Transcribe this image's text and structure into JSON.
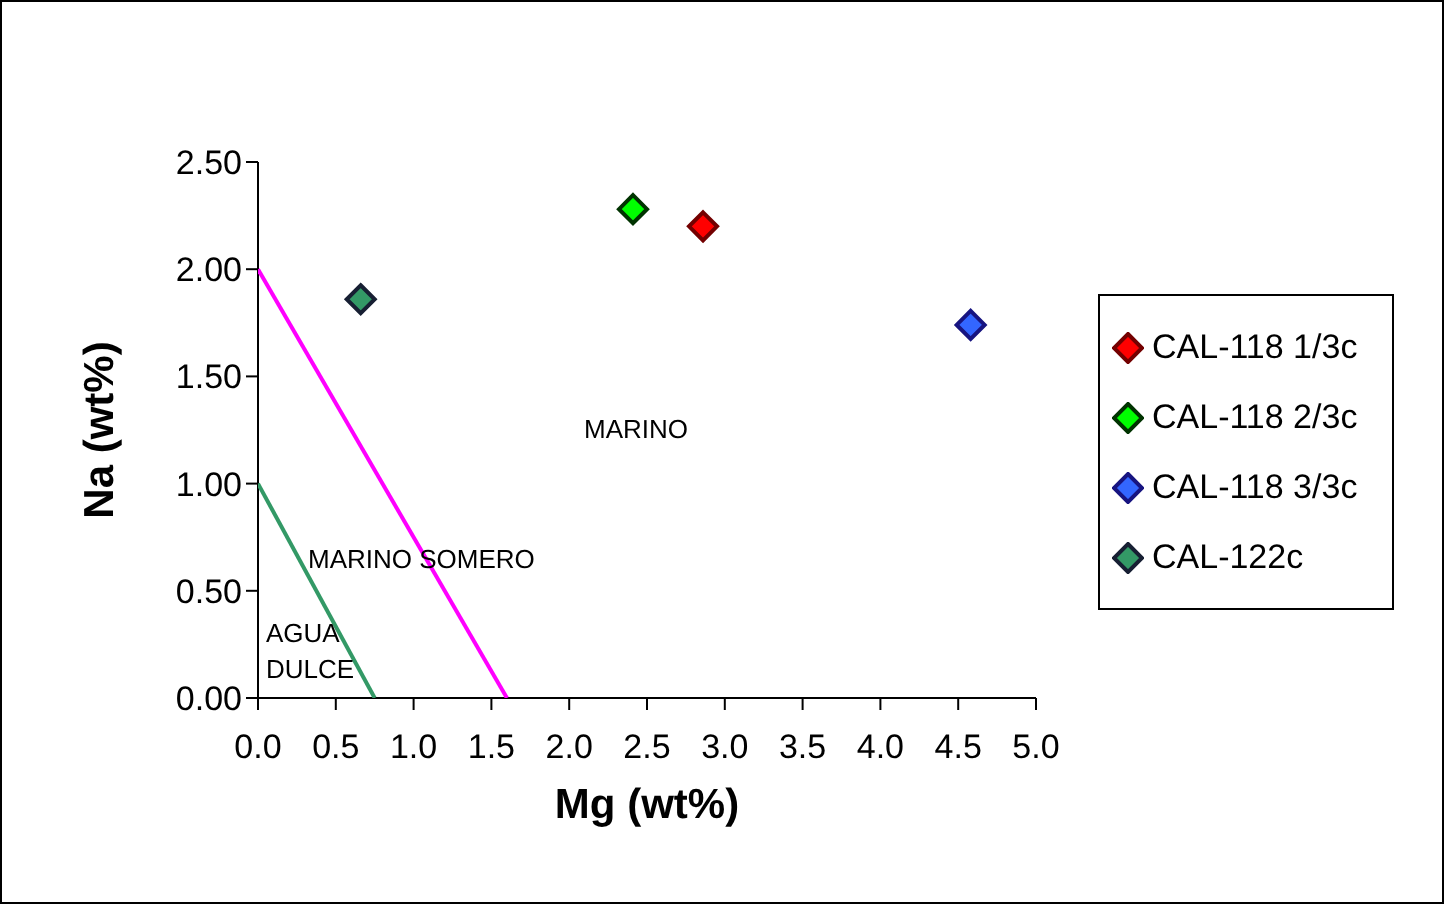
{
  "chart_data": {
    "type": "scatter",
    "xlabel": "Mg (wt%)",
    "ylabel": "Na (wt%)",
    "xlim": [
      0,
      5
    ],
    "ylim": [
      0,
      2.5
    ],
    "xticks": [
      {
        "value": 0,
        "label": "0.0"
      },
      {
        "value": 0.5,
        "label": "0.5"
      },
      {
        "value": 1,
        "label": "1.0"
      },
      {
        "value": 1.5,
        "label": "1.5"
      },
      {
        "value": 2,
        "label": "2.0"
      },
      {
        "value": 2.5,
        "label": "2.5"
      },
      {
        "value": 3,
        "label": "3.0"
      },
      {
        "value": 3.5,
        "label": "3.5"
      },
      {
        "value": 4,
        "label": "4.0"
      },
      {
        "value": 4.5,
        "label": "4.5"
      },
      {
        "value": 5,
        "label": "5.0"
      }
    ],
    "yticks": [
      {
        "value": 0,
        "label": "0.00"
      },
      {
        "value": 0.5,
        "label": "0.50"
      },
      {
        "value": 1,
        "label": "1.00"
      },
      {
        "value": 1.5,
        "label": "1.50"
      },
      {
        "value": 2,
        "label": "2.00"
      },
      {
        "value": 2.5,
        "label": "2.50"
      }
    ],
    "grid": false,
    "legend": "right",
    "marker": "diamond",
    "series": [
      {
        "name": "CAL-118 1/3c",
        "color": "#ff0000",
        "x": [
          2.86
        ],
        "values": [
          2.2
        ]
      },
      {
        "name": "CAL-118 2/3c",
        "color": "#00ff00",
        "x": [
          2.41
        ],
        "values": [
          2.28
        ]
      },
      {
        "name": "CAL-118 3/3c",
        "color": "#3366ff",
        "x": [
          4.58
        ],
        "values": [
          1.74
        ]
      },
      {
        "name": "CAL-122c",
        "color": "#339966",
        "x": [
          0.66
        ],
        "values": [
          1.86
        ]
      },
      {
        "type": "line",
        "marker": "none",
        "color": "#ff00ff",
        "x": [
          0,
          1.6
        ],
        "values": [
          2,
          0
        ]
      },
      {
        "type": "line",
        "marker": "none",
        "color": "#339966",
        "x": [
          0,
          0.75
        ],
        "values": [
          1,
          0
        ]
      }
    ],
    "annotations": [
      "MARINO",
      "MARINO SOMERO",
      "AGUA DULCE"
    ]
  }
}
